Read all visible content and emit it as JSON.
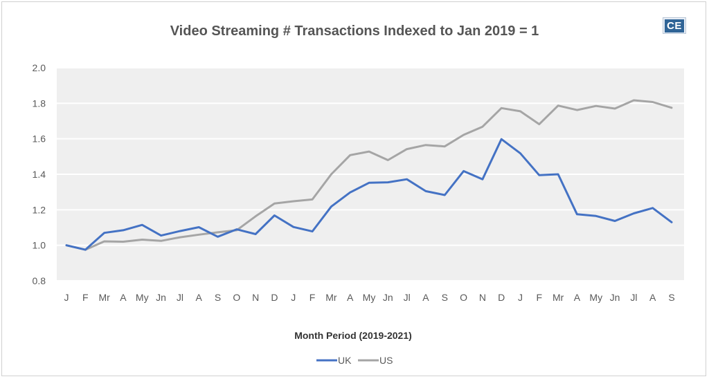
{
  "chart_data": {
    "type": "line",
    "title": "Video Streaming # Transactions Indexed to Jan 2019 = 1",
    "xlabel": "Month Period (2019-2021)",
    "ylabel": "",
    "ylim": [
      0.8,
      2.0
    ],
    "yticks": [
      "0.8",
      "1.0",
      "1.2",
      "1.4",
      "1.6",
      "1.8",
      "2.0"
    ],
    "ytick_values": [
      0.8,
      1.0,
      1.2,
      1.4,
      1.6,
      1.8,
      2.0
    ],
    "grid": true,
    "legend_position": "bottom",
    "categories": [
      "J",
      "F",
      "Mr",
      "A",
      "My",
      "Jn",
      "Jl",
      "A",
      "S",
      "O",
      "N",
      "D",
      "J",
      "F",
      "Mr",
      "A",
      "My",
      "Jn",
      "Jl",
      "A",
      "S",
      "O",
      "N",
      "D",
      "J",
      "F",
      "Mr",
      "A",
      "My",
      "Jn",
      "Jl",
      "A",
      "S"
    ],
    "series": [
      {
        "name": "UK",
        "color": "#4472c4",
        "values": [
          1.0,
          0.975,
          1.07,
          1.085,
          1.115,
          1.055,
          1.08,
          1.102,
          1.048,
          1.09,
          1.063,
          1.168,
          1.103,
          1.078,
          1.218,
          1.298,
          1.352,
          1.355,
          1.372,
          1.305,
          1.283,
          1.418,
          1.372,
          1.598,
          1.518,
          1.395,
          1.4,
          1.175,
          1.165,
          1.137,
          1.18,
          1.21,
          1.13
        ]
      },
      {
        "name": "US",
        "color": "#a5a5a5",
        "values": [
          1.0,
          0.975,
          1.022,
          1.02,
          1.032,
          1.025,
          1.045,
          1.06,
          1.073,
          1.085,
          1.163,
          1.235,
          1.248,
          1.258,
          1.4,
          1.508,
          1.528,
          1.48,
          1.542,
          1.565,
          1.557,
          1.622,
          1.668,
          1.773,
          1.755,
          1.682,
          1.787,
          1.762,
          1.785,
          1.77,
          1.817,
          1.807,
          1.775
        ]
      }
    ]
  },
  "logo": {
    "text": "CE"
  }
}
